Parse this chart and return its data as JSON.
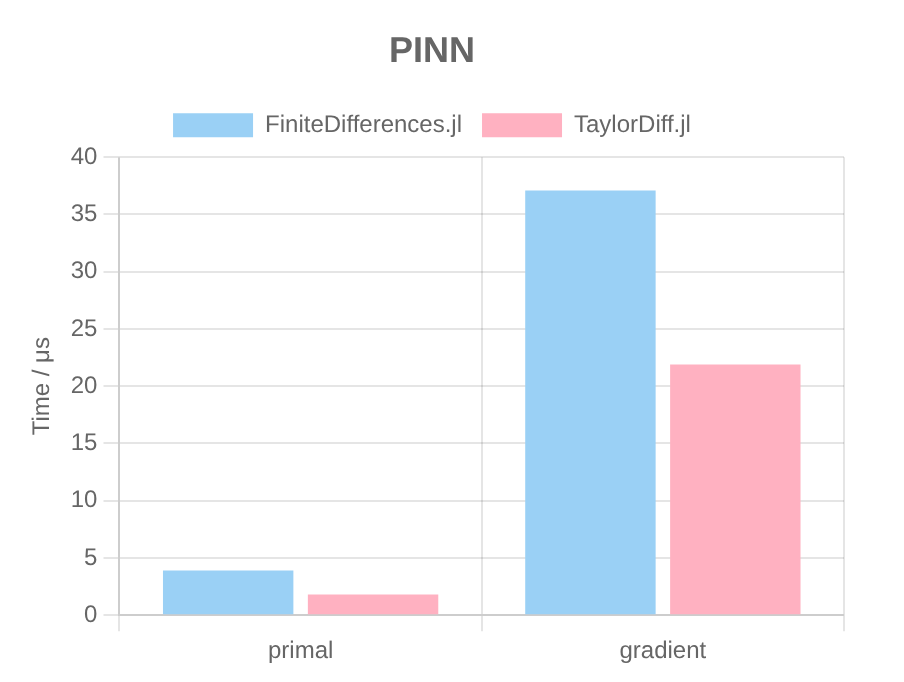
{
  "chart_data": {
    "type": "bar",
    "title": "PINN",
    "ylabel": "Time / μs",
    "categories": [
      "primal",
      "gradient"
    ],
    "series": [
      {
        "name": "FiniteDifferences.jl",
        "color": "#9ad0f5",
        "values": [
          3.9,
          37.1
        ]
      },
      {
        "name": "TaylorDiff.jl",
        "color": "#ffb1c1",
        "values": [
          1.8,
          21.9
        ]
      }
    ],
    "ylim": [
      0,
      40
    ],
    "yticks": [
      0,
      5,
      10,
      15,
      20,
      25,
      30,
      35,
      40
    ],
    "grid": true,
    "legend": "top"
  }
}
